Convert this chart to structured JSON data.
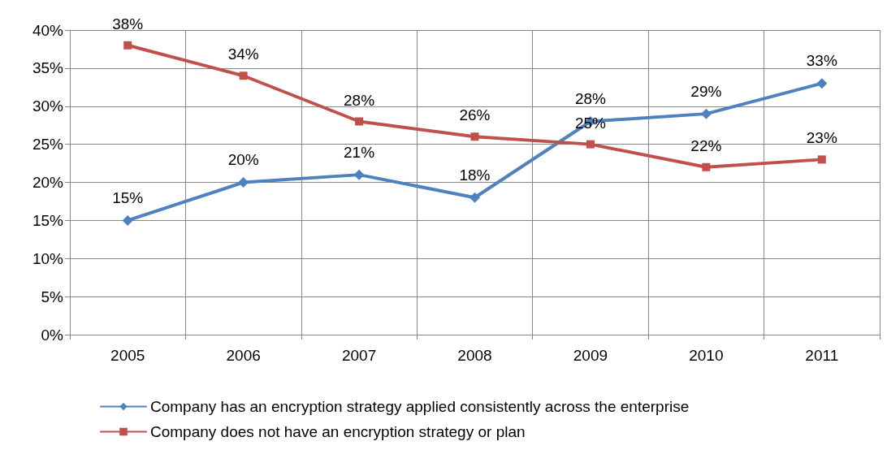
{
  "chart_data": {
    "type": "line",
    "categories": [
      "2005",
      "2006",
      "2007",
      "2008",
      "2009",
      "2010",
      "2011"
    ],
    "series": [
      {
        "name": "Company has an encryption strategy applied consistently across the enterprise",
        "color": "#4f81bd",
        "marker": "diamond",
        "values": [
          15,
          20,
          21,
          18,
          28,
          29,
          33
        ],
        "value_labels": [
          "15%",
          "20%",
          "21%",
          "18%",
          "28%",
          "29%",
          "33%"
        ]
      },
      {
        "name": "Company does not have an encryption strategy or plan",
        "color": "#c0504d",
        "marker": "square",
        "values": [
          38,
          34,
          28,
          26,
          25,
          22,
          23
        ],
        "value_labels": [
          "38%",
          "34%",
          "28%",
          "26%",
          "25%",
          "22%",
          "23%"
        ]
      }
    ],
    "ylim": [
      0,
      40
    ],
    "yticks": [
      {
        "value": 0,
        "label": "0%"
      },
      {
        "value": 5,
        "label": "5%"
      },
      {
        "value": 10,
        "label": "10%"
      },
      {
        "value": 15,
        "label": "15%"
      },
      {
        "value": 20,
        "label": "20%"
      },
      {
        "value": 25,
        "label": "25%"
      },
      {
        "value": 30,
        "label": "30%"
      },
      {
        "value": 35,
        "label": "35%"
      },
      {
        "value": 40,
        "label": "40%"
      }
    ],
    "grid": true,
    "legend": "bottom",
    "line_style": "solid"
  }
}
